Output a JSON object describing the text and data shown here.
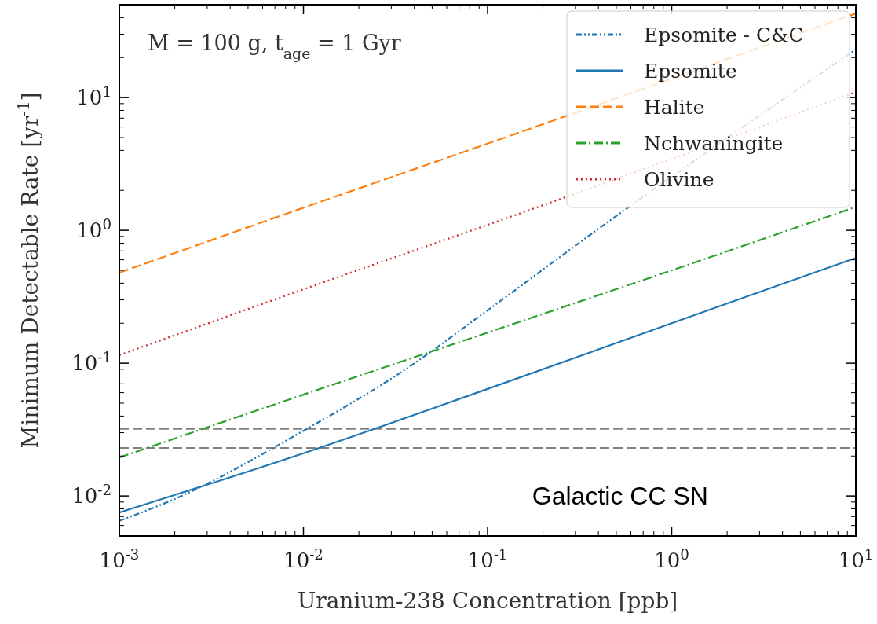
{
  "chart_data": {
    "type": "line",
    "xlabel": "Uranium-238 Concentration [ppb]",
    "ylabel": "Minimum Detectable Rate [yr$^{-1}$]",
    "log": "xy",
    "legend": "top right",
    "grid": false,
    "xlim": [
      0.001,
      10
    ],
    "ylim": [
      0.005,
      50
    ],
    "xticks": [
      {
        "value": 0.001,
        "label": "10$^{-3}$"
      },
      {
        "value": 0.01,
        "label": "10$^{-2}$"
      },
      {
        "value": 0.1,
        "label": "10$^{-1}$"
      },
      {
        "value": 1,
        "label": "10$^{0}$"
      },
      {
        "value": 10,
        "label": "10$^{1}$"
      }
    ],
    "yticks": [
      {
        "value": 0.01,
        "label": "10$^{-2}$"
      },
      {
        "value": 0.1,
        "label": "10$^{-1}$"
      },
      {
        "value": 1,
        "label": "10$^{0}$"
      },
      {
        "value": 10,
        "label": "10$^{1}$"
      }
    ],
    "series": [
      {
        "name": "Epsomite - C&C",
        "color": "#1f77b4",
        "line_style": "dashdotdot",
        "x": [
          0.001,
          0.002,
          0.01,
          0.035,
          0.1,
          0.39,
          10
        ],
        "values": [
          0.0065,
          0.0095,
          0.031,
          0.088,
          0.25,
          1.0,
          23
        ]
      },
      {
        "name": "Epsomite",
        "color": "#1f77b4",
        "line_style": "solid",
        "x": [
          0.001,
          0.01,
          0.1,
          1,
          10
        ],
        "values": [
          0.0075,
          0.021,
          0.064,
          0.2,
          0.62
        ]
      },
      {
        "name": "Halite",
        "color": "#ff7f0e",
        "line_style": "dashed",
        "x": [
          0.001,
          0.01,
          0.1,
          10
        ],
        "values": [
          0.48,
          1.48,
          4.5,
          43
        ]
      },
      {
        "name": "Nchwaningite",
        "color": "#2ca02c",
        "line_style": "dashdot",
        "x": [
          0.001,
          0.01,
          0.1,
          1,
          10
        ],
        "values": [
          0.0195,
          0.058,
          0.17,
          0.5,
          1.5
        ]
      },
      {
        "name": "Olivine",
        "color": "#d62728",
        "line_style": "dotted",
        "x": [
          0.001,
          0.01,
          0.1,
          10
        ],
        "values": [
          0.115,
          0.36,
          1.1,
          11
        ]
      }
    ],
    "ref_lines": [
      {
        "axis": "y",
        "value": 0.032,
        "color": "#808080",
        "line_style": "dashed"
      },
      {
        "axis": "y",
        "value": 0.023,
        "color": "#808080",
        "line_style": "dashed"
      }
    ],
    "annotations": [
      "M = 100 g, t$_{age}$ = 1 Gyr",
      "Galactic CC SN"
    ]
  }
}
